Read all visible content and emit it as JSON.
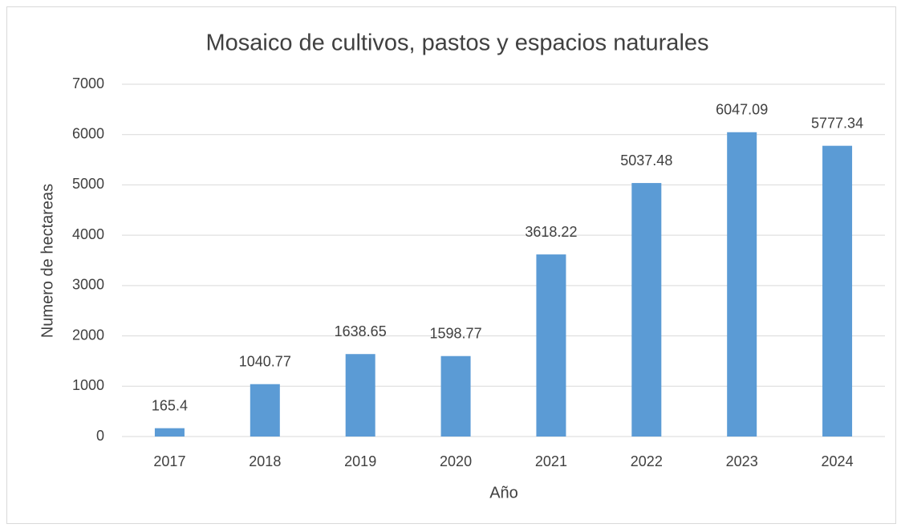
{
  "chart_data": {
    "type": "bar",
    "title": "Mosaico de cultivos, pastos y espacios naturales",
    "x_label": "Año",
    "y_label": "Numero de hectareas",
    "categories": [
      "2017",
      "2018",
      "2019",
      "2020",
      "2021",
      "2022",
      "2023",
      "2024"
    ],
    "values": [
      165.4,
      1040.77,
      1638.65,
      1598.77,
      3618.22,
      5037.48,
      6047.09,
      5777.34
    ],
    "color": "#5b9bd5",
    "ylim": [
      0,
      7000
    ],
    "yticks": [
      0,
      1000,
      2000,
      3000,
      4000,
      5000,
      6000,
      7000
    ],
    "grid": true
  }
}
